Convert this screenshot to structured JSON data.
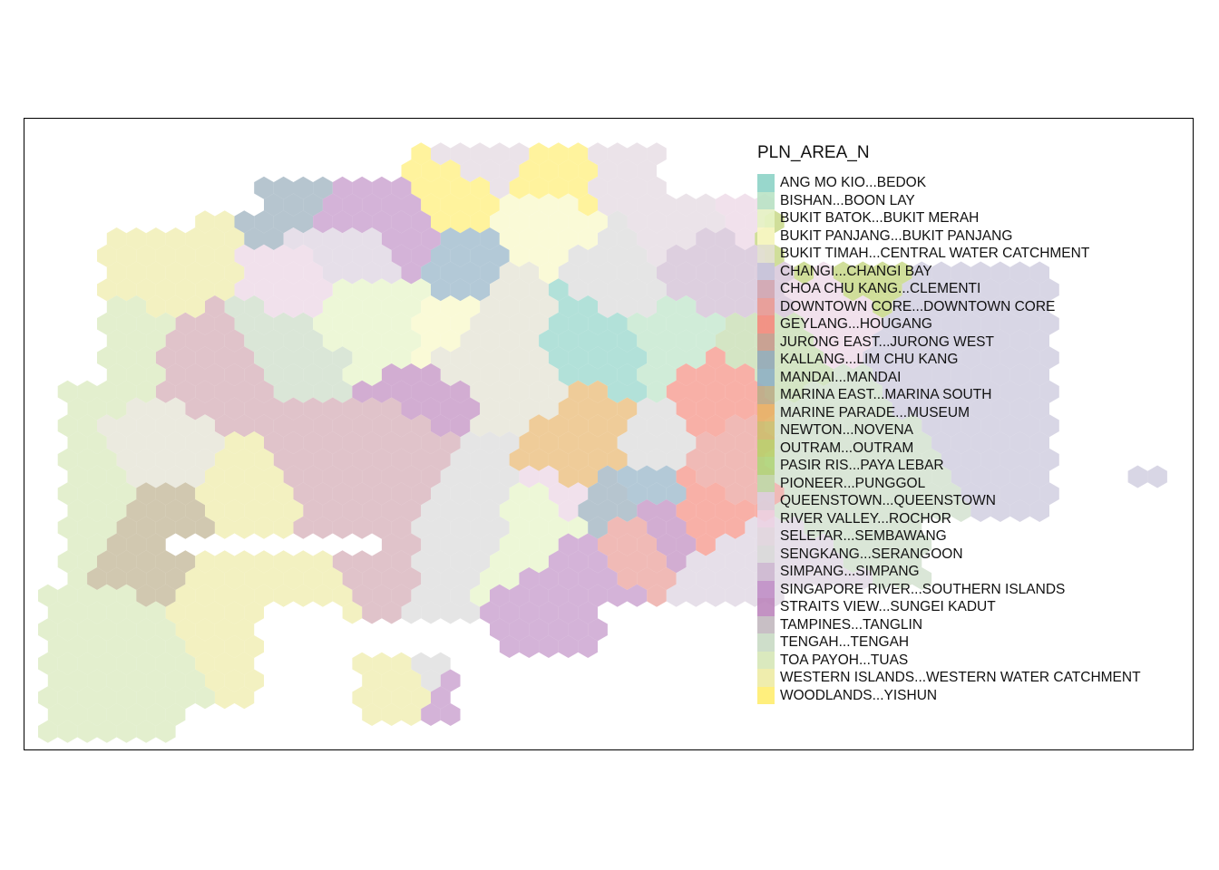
{
  "legend": {
    "title": "PLN_AREA_N",
    "position": "top-right",
    "items": [
      {
        "label": "ANG MO KIO...BEDOK",
        "color": "#8DD3C7"
      },
      {
        "label": "BISHAN...BOON LAY",
        "color": "#B9E3C5"
      },
      {
        "label": "BUKIT BATOK...BUKIT MERAH",
        "color": "#E5F3C4"
      },
      {
        "label": "BUKIT PANJANG...BUKIT PANJANG",
        "color": "#F8F7C4"
      },
      {
        "label": "BUKIT TIMAH...CENTRAL WATER CATCHMENT",
        "color": "#E2E0D0"
      },
      {
        "label": "CHANGI...CHANGI BAY",
        "color": "#C6C3D9"
      },
      {
        "label": "CHOA CHU KANG...CLEMENTI",
        "color": "#D1A6B1"
      },
      {
        "label": "DOWNTOWN CORE...DOWNTOWN CORE",
        "color": "#E99A93"
      },
      {
        "label": "GEYLANG...HOUGANG",
        "color": "#F58A7E"
      },
      {
        "label": "JURONG EAST...JURONG WEST",
        "color": "#C89A8E"
      },
      {
        "label": "KALLANG...LIM CHU KANG",
        "color": "#93A9B8"
      },
      {
        "label": "MANDAI...MANDAI",
        "color": "#8FB0C4"
      },
      {
        "label": "MARINA EAST...MARINA SOUTH",
        "color": "#BBAE8A"
      },
      {
        "label": "MARINE PARADE...MUSEUM",
        "color": "#E7B468"
      },
      {
        "label": "NEWTON...NOVENA",
        "color": "#CDBE6E"
      },
      {
        "label": "OUTRAM...OUTRAM",
        "color": "#B9CF6A"
      },
      {
        "label": "PASIR RIS...PAYA LEBAR",
        "color": "#B0D57A"
      },
      {
        "label": "PIONEER...PUNGGOL",
        "color": "#BFD9A8"
      },
      {
        "label": "QUEENSTOWN...QUEENSTOWN",
        "color": "#DAD0DE"
      },
      {
        "label": "RIVER VALLEY...ROCHOR",
        "color": "#EBD3E3"
      },
      {
        "label": "SELETAR...SEMBAWANG",
        "color": "#E1D6DE"
      },
      {
        "label": "SENGKANG...SERANGOON",
        "color": "#D9D9D9"
      },
      {
        "label": "SIMPANG...SIMPANG",
        "color": "#CDB8D0"
      },
      {
        "label": "SINGAPORE RIVER...SOUTHERN ISLANDS",
        "color": "#C08FC6"
      },
      {
        "label": "STRAITS VIEW...SUNGEI KADUT",
        "color": "#BC86BD"
      },
      {
        "label": "TAMPINES...TANGLIN",
        "color": "#C2B8BF"
      },
      {
        "label": "TENGAH...TENGAH",
        "color": "#C9DAC4"
      },
      {
        "label": "TOA PAYOH...TUAS",
        "color": "#D6E7B7"
      },
      {
        "label": "WESTERN ISLANDS...WESTERN WATER CATCHMENT",
        "color": "#EDEBA4"
      },
      {
        "label": "WOODLANDS...YISHUN",
        "color": "#FFED6F"
      }
    ]
  }
}
